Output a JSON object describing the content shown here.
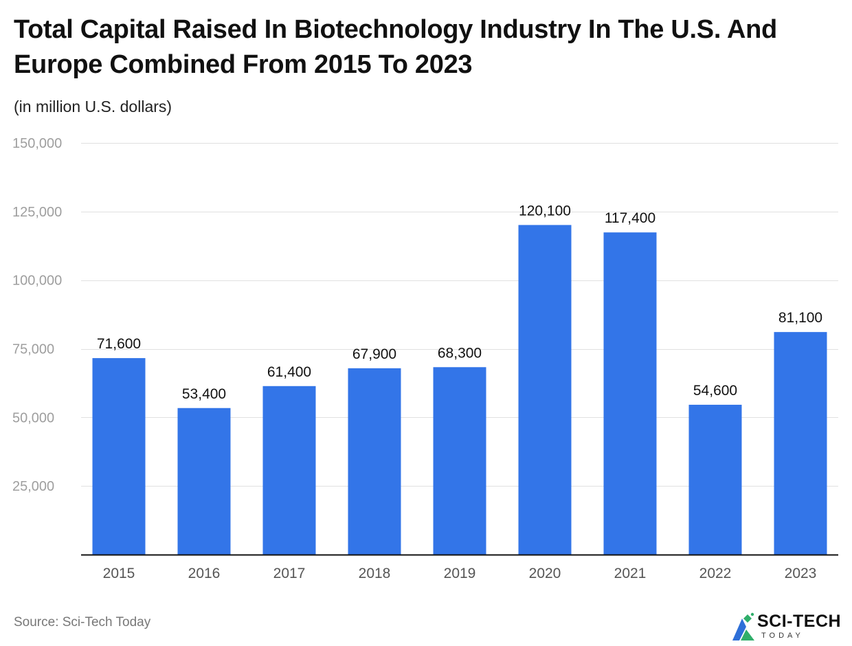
{
  "header": {
    "title": "Total Capital Raised In Biotechnology Industry In The U.S. And Europe Combined From 2015 To 2023",
    "subtitle": "(in million U.S. dollars)"
  },
  "footer": {
    "source": "Source: Sci-Tech Today",
    "logo_text": "SCI-TECH",
    "logo_sub": "TODAY"
  },
  "colors": {
    "bar": "#3375E8",
    "grid": "#E0E0E0",
    "axis": "#111111",
    "tick_label": "#9E9E9E",
    "category_label": "#555555",
    "value_label": "#111111"
  },
  "chart_data": {
    "type": "bar",
    "title": "Total Capital Raised In Biotechnology Industry In The U.S. And Europe Combined From 2015 To 2023",
    "subtitle": "(in million U.S. dollars)",
    "xlabel": "",
    "ylabel": "",
    "categories": [
      "2015",
      "2016",
      "2017",
      "2018",
      "2019",
      "2020",
      "2021",
      "2022",
      "2023"
    ],
    "values": [
      71600,
      53400,
      61400,
      67900,
      68300,
      120100,
      117400,
      54600,
      81100
    ],
    "value_labels": [
      "71,600",
      "53,400",
      "61,400",
      "67,900",
      "68,300",
      "120,100",
      "117,400",
      "54,600",
      "81,100"
    ],
    "ylim": [
      0,
      150000
    ],
    "yticks": [
      25000,
      50000,
      75000,
      100000,
      125000,
      150000
    ],
    "ytick_labels": [
      "25,000",
      "50,000",
      "75,000",
      "100,000",
      "125,000",
      "150,000"
    ],
    "grid": true,
    "legend": "none"
  }
}
